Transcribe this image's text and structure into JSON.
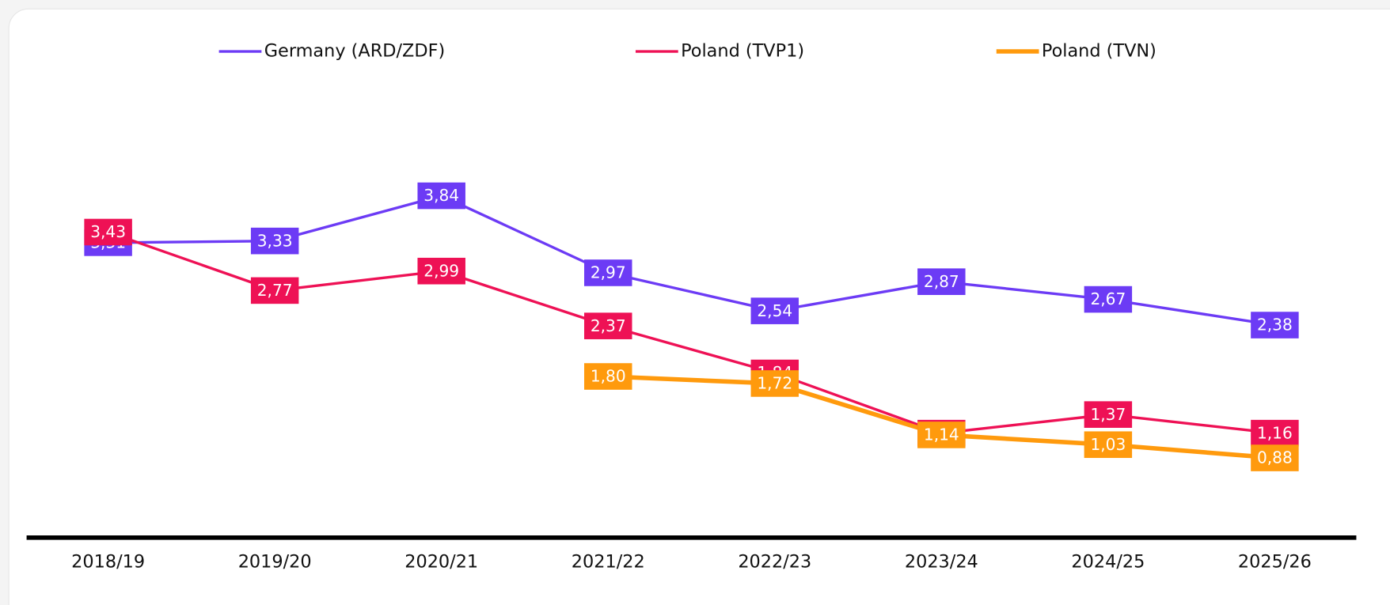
{
  "chart_data": {
    "type": "line",
    "categories": [
      "2018/19",
      "2019/20",
      "2020/21",
      "2021/22",
      "2022/23",
      "2023/24",
      "2024/25",
      "2025/26"
    ],
    "ylim": [
      0,
      5
    ],
    "series": [
      {
        "name": "Germany (ARD/ZDF)",
        "color": "#6c3bf5",
        "values": [
          3.31,
          3.33,
          3.84,
          2.97,
          2.54,
          2.87,
          2.67,
          2.38
        ],
        "value_labels": [
          "3,31",
          "3,33",
          "3,84",
          "2,97",
          "2,54",
          "2,87",
          "2,67",
          "2,38"
        ]
      },
      {
        "name": "Poland (TVP1)",
        "color": "#ee1155",
        "values": [
          3.43,
          2.77,
          2.99,
          2.37,
          1.84,
          1.16,
          1.37,
          1.16
        ],
        "value_labels": [
          "3,43",
          "2,77",
          "2,99",
          "2,37",
          "1,84",
          "1,16",
          "1,37",
          "1,16"
        ]
      },
      {
        "name": "Poland (TVN)",
        "color": "#ff9a0d",
        "values": [
          null,
          null,
          null,
          1.8,
          1.72,
          1.14,
          1.03,
          0.88
        ],
        "value_labels": [
          null,
          null,
          null,
          "1,80",
          "1,72",
          "1,14",
          "1,03",
          "0,88"
        ]
      }
    ],
    "legend": "top"
  }
}
